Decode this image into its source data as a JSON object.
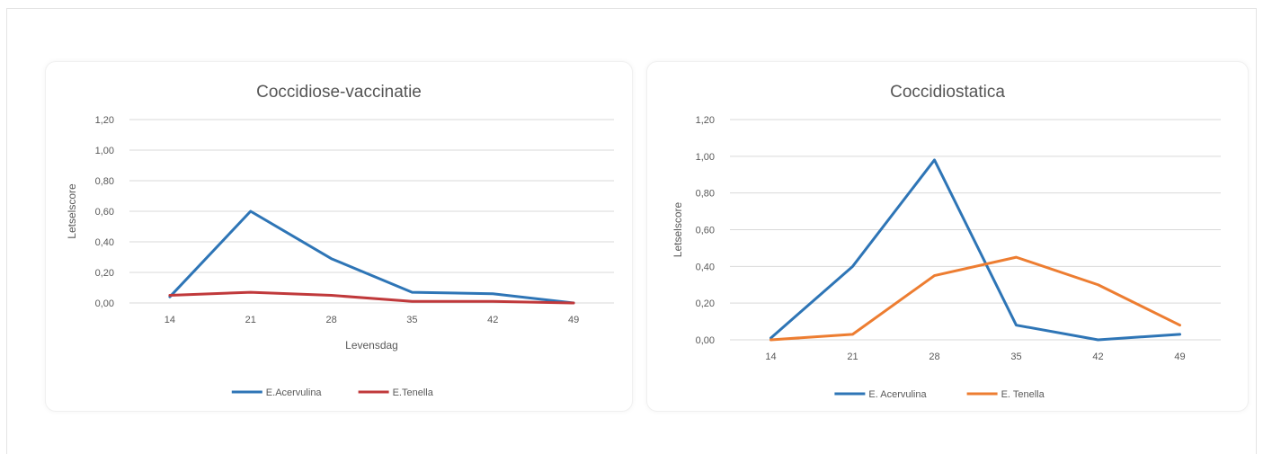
{
  "chart_data": [
    {
      "type": "line",
      "title": "Coccidiose-vaccinatie",
      "xlabel": "Levensdag",
      "ylabel": "Letselscore",
      "categories": [
        "14",
        "21",
        "28",
        "35",
        "42",
        "49"
      ],
      "ylim": [
        0,
        1.2
      ],
      "y_ticks": [
        "0,00",
        "0,20",
        "0,40",
        "0,60",
        "0,80",
        "1,00",
        "1,20"
      ],
      "grid": true,
      "legend_position": "bottom",
      "series": [
        {
          "name": "E.Acervulina",
          "color": "#2e75b6",
          "values": [
            0.04,
            0.6,
            0.29,
            0.07,
            0.06,
            0.0
          ]
        },
        {
          "name": "E.Tenella",
          "color": "#c0393b",
          "values": [
            0.05,
            0.07,
            0.05,
            0.01,
            0.01,
            0.0
          ]
        }
      ]
    },
    {
      "type": "line",
      "title": "Coccidiostatica",
      "xlabel": "",
      "ylabel": "Letselscore",
      "categories": [
        "14",
        "21",
        "28",
        "35",
        "42",
        "49"
      ],
      "ylim": [
        0,
        1.2
      ],
      "y_ticks": [
        "0,00",
        "0,20",
        "0,40",
        "0,60",
        "0,80",
        "1,00",
        "1,20"
      ],
      "grid": true,
      "legend_position": "bottom",
      "series": [
        {
          "name": "E. Acervulina",
          "color": "#2e75b6",
          "values": [
            0.01,
            0.4,
            0.98,
            0.08,
            0.0,
            0.03
          ]
        },
        {
          "name": "E. Tenella",
          "color": "#ed7d31",
          "values": [
            0.0,
            0.03,
            0.35,
            0.45,
            0.3,
            0.08
          ]
        }
      ]
    }
  ]
}
